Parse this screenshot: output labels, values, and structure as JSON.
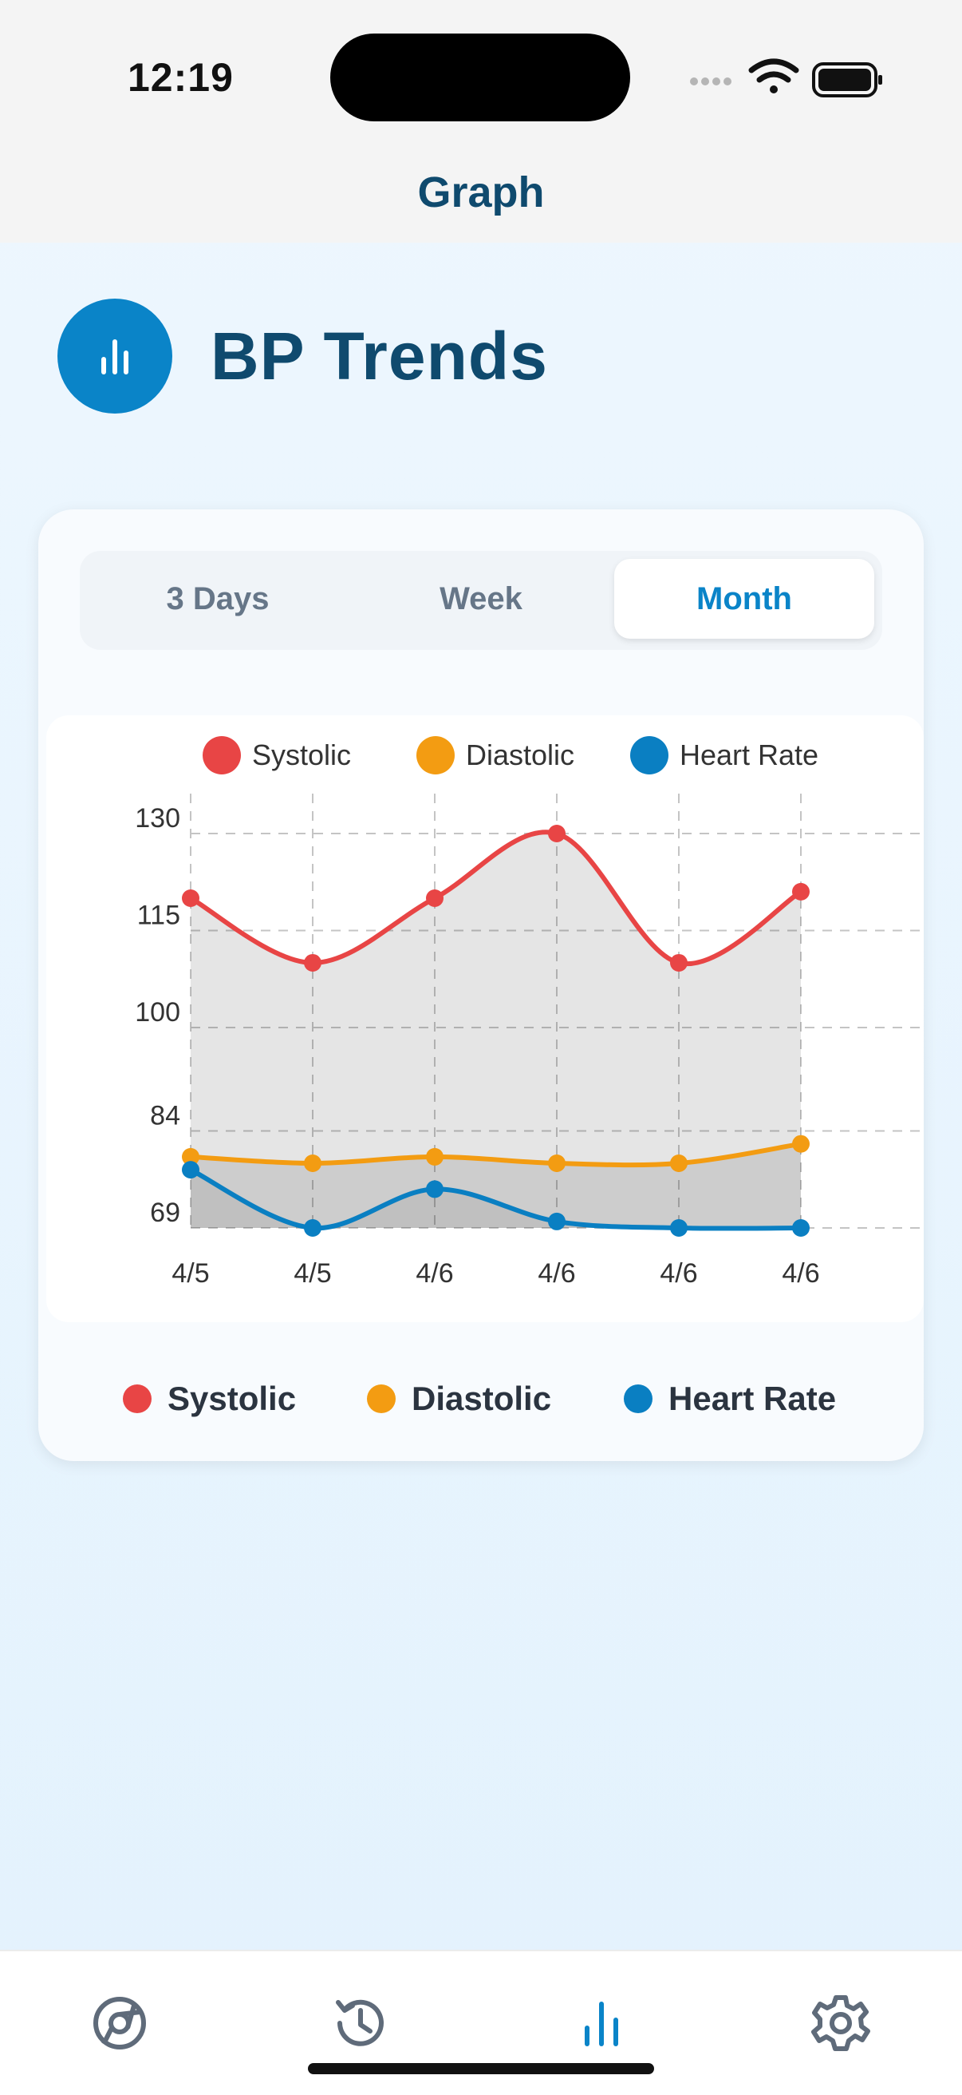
{
  "status_bar": {
    "time": "12:19"
  },
  "nav": {
    "title": "Graph"
  },
  "header": {
    "title": "BP Trends",
    "icon": "bar-chart-icon"
  },
  "segments": {
    "items": [
      "3 Days",
      "Week",
      "Month"
    ],
    "selected": "Month"
  },
  "colors": {
    "systolic": "#e84545",
    "diastolic": "#f39c12",
    "heart_rate": "#0a7fc2",
    "accent": "#0a84c8",
    "title": "#0f4a6e"
  },
  "chart_data": {
    "type": "line",
    "x": [
      "4/5",
      "4/5",
      "4/6",
      "4/6",
      "4/6",
      "4/6"
    ],
    "yticks": [
      "130",
      "115",
      "100",
      "84",
      "69"
    ],
    "ylim": [
      69,
      130
    ],
    "legend": [
      "Systolic",
      "Diastolic",
      "Heart Rate"
    ],
    "legend_position": "top",
    "grid": true,
    "series": [
      {
        "name": "Systolic",
        "values": [
          120,
          110,
          120,
          130,
          110,
          121
        ]
      },
      {
        "name": "Diastolic",
        "values": [
          80,
          79,
          80,
          79,
          79,
          82
        ]
      },
      {
        "name": "Heart Rate",
        "values": [
          78,
          69,
          75,
          70,
          69,
          69
        ]
      }
    ]
  },
  "legend_bottom": [
    "Systolic",
    "Diastolic",
    "Heart Rate"
  ],
  "tabs": [
    {
      "name": "home",
      "icon": "chrome-circle-icon"
    },
    {
      "name": "history",
      "icon": "history-icon"
    },
    {
      "name": "graph",
      "icon": "bar-chart-icon",
      "active": true
    },
    {
      "name": "settings",
      "icon": "gear-icon"
    }
  ]
}
